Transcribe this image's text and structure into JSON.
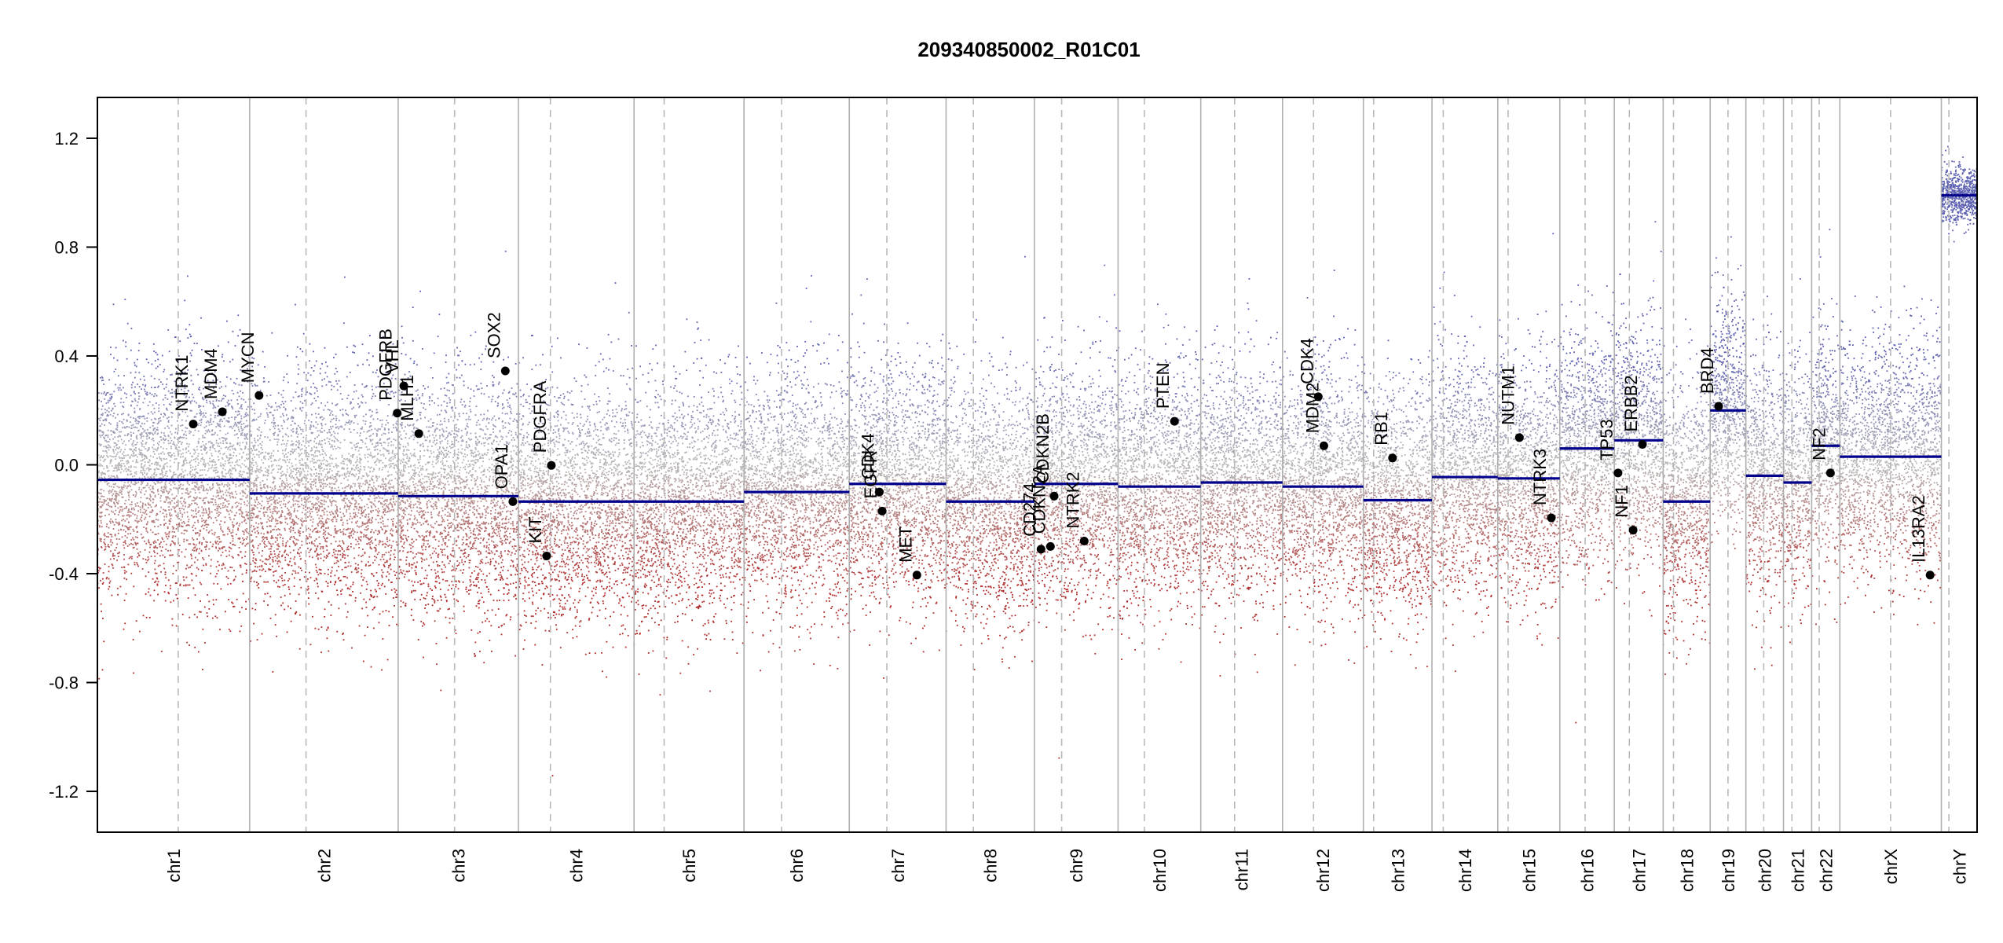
{
  "chart_data": {
    "type": "scatter",
    "title": "209340850002_R01C01",
    "ylim": [
      -1.35,
      1.35
    ],
    "yticks": [
      {
        "value": 1.2,
        "label": "1.2"
      },
      {
        "value": 0.8,
        "label": "0.8"
      },
      {
        "value": 0.4,
        "label": "0.4"
      },
      {
        "value": 0.0,
        "label": "0.0"
      },
      {
        "value": -0.4,
        "label": "-0.4"
      },
      {
        "value": -0.8,
        "label": "-0.8"
      },
      {
        "value": -1.2,
        "label": "-1.2"
      }
    ],
    "genome_length": 1000,
    "chromosomes": [
      {
        "name": "chr1",
        "start": 0,
        "end": 81,
        "centromere": 43,
        "segment": -0.055
      },
      {
        "name": "chr2",
        "start": 81,
        "end": 160,
        "centromere": 111,
        "segment": -0.105
      },
      {
        "name": "chr3",
        "start": 160,
        "end": 224,
        "centromere": 190,
        "segment": -0.115
      },
      {
        "name": "chr4",
        "start": 224,
        "end": 285.5,
        "centromere": 241,
        "segment": -0.135
      },
      {
        "name": "chr5",
        "start": 285.5,
        "end": 344,
        "centromere": 301.5,
        "segment": -0.135
      },
      {
        "name": "chr6",
        "start": 344,
        "end": 400,
        "centromere": 364,
        "segment": -0.1
      },
      {
        "name": "chr7",
        "start": 400,
        "end": 451.5,
        "centromere": 420,
        "segment": -0.07
      },
      {
        "name": "chr8",
        "start": 451.5,
        "end": 498.5,
        "centromere": 466,
        "segment": -0.135
      },
      {
        "name": "chr9",
        "start": 498.5,
        "end": 543,
        "centromere": 513,
        "segment": -0.07
      },
      {
        "name": "chr10",
        "start": 543,
        "end": 587,
        "centromere": 557,
        "segment": -0.08
      },
      {
        "name": "chr11",
        "start": 587,
        "end": 630.5,
        "centromere": 605,
        "segment": -0.065
      },
      {
        "name": "chr12",
        "start": 630.5,
        "end": 673.5,
        "centromere": 647,
        "segment": -0.08
      },
      {
        "name": "chr13",
        "start": 673.5,
        "end": 710,
        "centromere": 679,
        "segment": -0.13
      },
      {
        "name": "chr14",
        "start": 710,
        "end": 745,
        "centromere": 716,
        "segment": -0.045
      },
      {
        "name": "chr15",
        "start": 745,
        "end": 778,
        "centromere": 750.5,
        "segment": -0.05
      },
      {
        "name": "chr16",
        "start": 778,
        "end": 807,
        "centromere": 791.5,
        "segment": 0.06
      },
      {
        "name": "chr17",
        "start": 807,
        "end": 833,
        "centromere": 815,
        "segment": 0.09
      },
      {
        "name": "chr18",
        "start": 833,
        "end": 858,
        "centromere": 838.5,
        "segment": -0.135
      },
      {
        "name": "chr19",
        "start": 858,
        "end": 877,
        "centromere": 867.5,
        "segment": 0.2
      },
      {
        "name": "chr20",
        "start": 877,
        "end": 897,
        "centromere": 886.5,
        "segment": -0.04
      },
      {
        "name": "chr21",
        "start": 897,
        "end": 912,
        "centromere": 901.5,
        "segment": -0.065
      },
      {
        "name": "chr22",
        "start": 912,
        "end": 927,
        "centromere": 916,
        "segment": 0.07
      },
      {
        "name": "chrX",
        "start": 927,
        "end": 981,
        "centromere": 954,
        "segment": 0.03
      },
      {
        "name": "chrY",
        "start": 981,
        "end": 1000,
        "centromere": 985,
        "segment": 0.99
      }
    ],
    "genes": [
      {
        "name": "NTRK1",
        "pos": 51,
        "value": 0.15
      },
      {
        "name": "MDM4",
        "pos": 66.5,
        "value": 0.195
      },
      {
        "name": "MYCN",
        "pos": 86,
        "value": 0.255
      },
      {
        "name": "PDGFRB",
        "pos": 159.5,
        "value": 0.19
      },
      {
        "name": "VHL",
        "pos": 163,
        "value": 0.29
      },
      {
        "name": "MLH1",
        "pos": 171,
        "value": 0.115
      },
      {
        "name": "SOX2",
        "pos": 217,
        "value": 0.345
      },
      {
        "name": "OPA1",
        "pos": 221,
        "value": -0.135
      },
      {
        "name": "PDGFRA",
        "pos": 241.5,
        "value": -0.002
      },
      {
        "name": "KIT",
        "pos": 239,
        "value": -0.335
      },
      {
        "name": "EGFR",
        "pos": 417.5,
        "value": -0.17
      },
      {
        "name": "CDK4",
        "pos": 416,
        "value": -0.1
      },
      {
        "name": "MET",
        "pos": 436,
        "value": -0.405
      },
      {
        "name": "CD274",
        "pos": 502,
        "value": -0.31
      },
      {
        "name": "CDKN2A",
        "pos": 507,
        "value": -0.3
      },
      {
        "name": "CDKN2B",
        "pos": 509,
        "value": -0.115
      },
      {
        "name": "NTRK2",
        "pos": 525,
        "value": -0.28
      },
      {
        "name": "PTEN",
        "pos": 573,
        "value": 0.16
      },
      {
        "name": "CDK4",
        "pos": 649.5,
        "value": 0.25
      },
      {
        "name": "MDM2",
        "pos": 652.5,
        "value": 0.07
      },
      {
        "name": "RB1",
        "pos": 689,
        "value": 0.025
      },
      {
        "name": "NUTM1",
        "pos": 756.5,
        "value": 0.1
      },
      {
        "name": "NTRK3",
        "pos": 773.5,
        "value": -0.195
      },
      {
        "name": "TP53",
        "pos": 809,
        "value": -0.03
      },
      {
        "name": "NF1",
        "pos": 817,
        "value": -0.24
      },
      {
        "name": "ERBB2",
        "pos": 822,
        "value": 0.075
      },
      {
        "name": "BRD4",
        "pos": 862.5,
        "value": 0.215
      },
      {
        "name": "NF2",
        "pos": 922,
        "value": -0.03
      },
      {
        "name": "IL13RA2",
        "pos": 975,
        "value": -0.405
      }
    ],
    "probe_colors": {
      "gain": "#5b5fb0",
      "neutral": "#b8b8b8",
      "loss": "#b02a2a"
    },
    "segment_color": "#00008b",
    "boundary_color": "#b0b0b0",
    "centromere_color": "#b8b8b8"
  }
}
